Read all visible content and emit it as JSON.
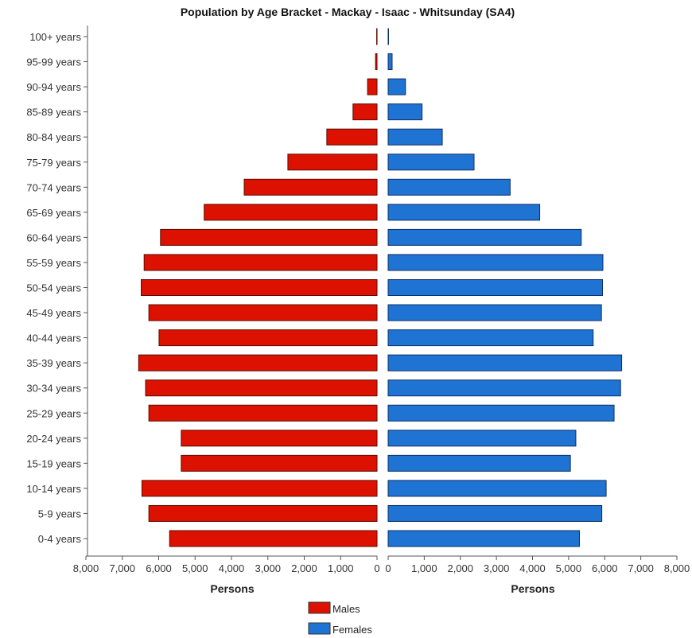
{
  "chart_data": {
    "type": "bar",
    "title": "Population by Age Bracket - Mackay - Isaac - Whitsunday (SA4)",
    "categories": [
      "100+ years",
      "95-99 years",
      "90-94 years",
      "85-89 years",
      "80-84 years",
      "75-79 years",
      "70-74 years",
      "65-69 years",
      "60-64 years",
      "55-59 years",
      "50-54 years",
      "45-49 years",
      "40-44 years",
      "35-39 years",
      "30-34 years",
      "25-29 years",
      "20-24 years",
      "15-19 years",
      "10-14 years",
      "5-9 years",
      "0-4 years"
    ],
    "series": [
      {
        "name": "Males",
        "color": "#dd1100",
        "values": [
          10,
          40,
          260,
          660,
          1380,
          2450,
          3650,
          4750,
          5950,
          6400,
          6480,
          6270,
          5990,
          6550,
          6360,
          6270,
          5380,
          5380,
          6460,
          6270,
          5700
        ]
      },
      {
        "name": "Females",
        "color": "#1f73d2",
        "values": [
          10,
          110,
          480,
          940,
          1500,
          2380,
          3380,
          4200,
          5350,
          5950,
          5940,
          5910,
          5680,
          6470,
          6440,
          6260,
          5200,
          5050,
          6040,
          5920,
          5300
        ]
      }
    ],
    "xlim": [
      0,
      8000
    ],
    "ticks": [
      "8,000",
      "7,000",
      "6,000",
      "5,000",
      "4,000",
      "3,000",
      "2,000",
      "1,000",
      "0"
    ],
    "ticks_right": [
      "0",
      "1,000",
      "2,000",
      "3,000",
      "4,000",
      "5,000",
      "6,000",
      "7,000",
      "8,000"
    ],
    "xlabel_left": "Persons",
    "xlabel_right": "Persons",
    "legend": [
      "Males",
      "Females"
    ],
    "legend_position": "bottom-center"
  }
}
